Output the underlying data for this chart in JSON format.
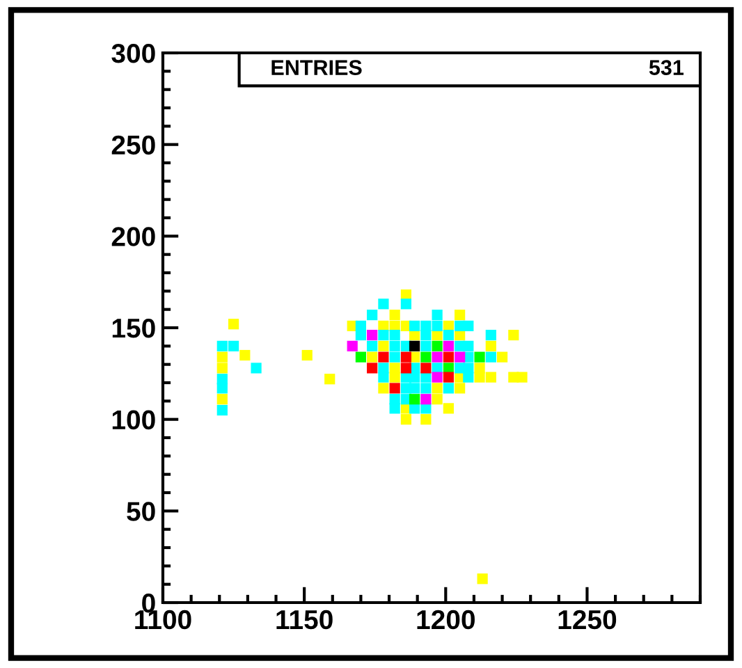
{
  "chart_data": {
    "type": "scatter",
    "marker": "square",
    "grid": false,
    "legend": false,
    "xlim": [
      1100,
      1290
    ],
    "xticks": [
      1100,
      1150,
      1200,
      1250
    ],
    "ylim": [
      0,
      300
    ],
    "yticks": [
      0,
      50,
      100,
      150,
      200,
      250,
      300
    ],
    "annotations": [
      "ENTRIES",
      "531"
    ],
    "series": [
      {
        "color": "#ffff00",
        "x": [
          1186,
          1182,
          1205,
          1167,
          1178,
          1182,
          1186,
          1201,
          1189,
          1197,
          1205,
          1224,
          1178,
          1216,
          1174,
          1189,
          1220,
          1182,
          1212,
          1182,
          1205,
          1212,
          1216,
          1224,
          1227,
          1178,
          1197,
          1205,
          1197,
          1186,
          1201,
          1186,
          1193,
          1125,
          1121,
          1121,
          1129,
          1151,
          1159,
          1121,
          1213
        ],
        "values": [
          168,
          157,
          157,
          151,
          151,
          151,
          151,
          151,
          146,
          146,
          146,
          146,
          140,
          140,
          134,
          134,
          134,
          128,
          128,
          123,
          123,
          123,
          123,
          123,
          123,
          117,
          117,
          117,
          111,
          106,
          106,
          100,
          100,
          152,
          134,
          128,
          135,
          135,
          122,
          111,
          13
        ]
      },
      {
        "color": "#00ffff",
        "x": [
          1178,
          1186,
          1174,
          1197,
          1170,
          1189,
          1193,
          1197,
          1205,
          1208,
          1170,
          1178,
          1182,
          1193,
          1201,
          1216,
          1174,
          1182,
          1186,
          1193,
          1205,
          1208,
          1182,
          1208,
          1216,
          1178,
          1189,
          1197,
          1205,
          1208,
          1178,
          1186,
          1189,
          1193,
          1208,
          1186,
          1189,
          1193,
          1201,
          1182,
          1186,
          1182,
          1189,
          1193,
          1121,
          1125,
          1133,
          1121,
          1121,
          1121
        ],
        "values": [
          163,
          163,
          157,
          157,
          151,
          151,
          151,
          151,
          151,
          151,
          146,
          146,
          146,
          146,
          146,
          146,
          140,
          140,
          140,
          140,
          140,
          140,
          134,
          134,
          134,
          128,
          128,
          128,
          128,
          128,
          123,
          123,
          123,
          123,
          123,
          117,
          117,
          117,
          117,
          111,
          111,
          106,
          106,
          106,
          140,
          140,
          128,
          122,
          117,
          105
        ]
      },
      {
        "color": "#00ff00",
        "x": [
          1197,
          1170,
          1193,
          1212,
          1201,
          1189
        ],
        "values": [
          140,
          134,
          134,
          134,
          128,
          111
        ]
      },
      {
        "color": "#ff0000",
        "x": [
          1178,
          1186,
          1201,
          1174,
          1186,
          1193,
          1201,
          1182
        ],
        "values": [
          134,
          134,
          134,
          128,
          128,
          128,
          123,
          117
        ]
      },
      {
        "color": "#ff00ff",
        "x": [
          1174,
          1167,
          1201,
          1197,
          1205,
          1197,
          1193
        ],
        "values": [
          146,
          140,
          140,
          134,
          134,
          123,
          111
        ]
      },
      {
        "color": "#000000",
        "x": [
          1189
        ],
        "values": [
          140
        ]
      }
    ]
  }
}
